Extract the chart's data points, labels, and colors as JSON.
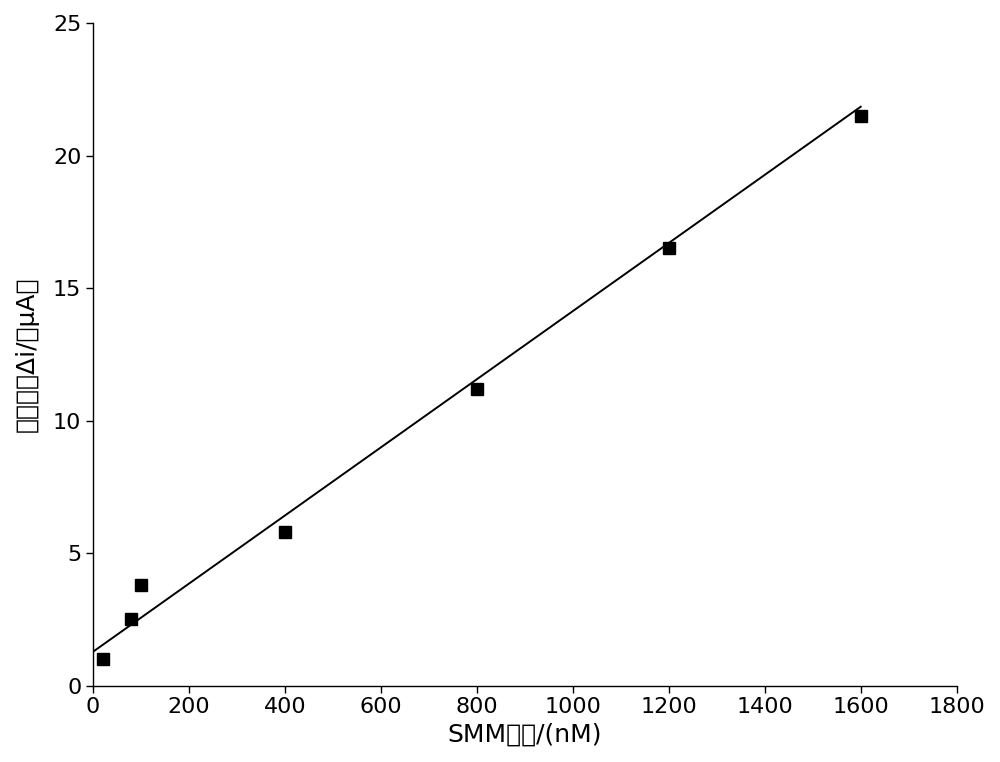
{
  "x_data": [
    20,
    80,
    100,
    400,
    800,
    1200,
    1600
  ],
  "y_data": [
    1.0,
    2.5,
    3.8,
    5.8,
    11.2,
    16.5,
    21.5
  ],
  "line_x": [
    0,
    1600
  ],
  "line_slope": 0.01285,
  "line_intercept": 1.28,
  "xlabel": "SMM浓度/(nM)",
  "ylabel": "峻电流差Δi/（μA）",
  "xlim": [
    0,
    1800
  ],
  "ylim": [
    0,
    25
  ],
  "xticks": [
    0,
    200,
    400,
    600,
    800,
    1000,
    1200,
    1400,
    1600,
    1800
  ],
  "yticks": [
    0,
    5,
    10,
    15,
    20,
    25
  ],
  "marker_color": "#000000",
  "line_color": "#000000",
  "bg_color": "#ffffff",
  "marker_size": 9,
  "line_width": 1.4,
  "tick_fontsize": 16,
  "label_fontsize": 18
}
